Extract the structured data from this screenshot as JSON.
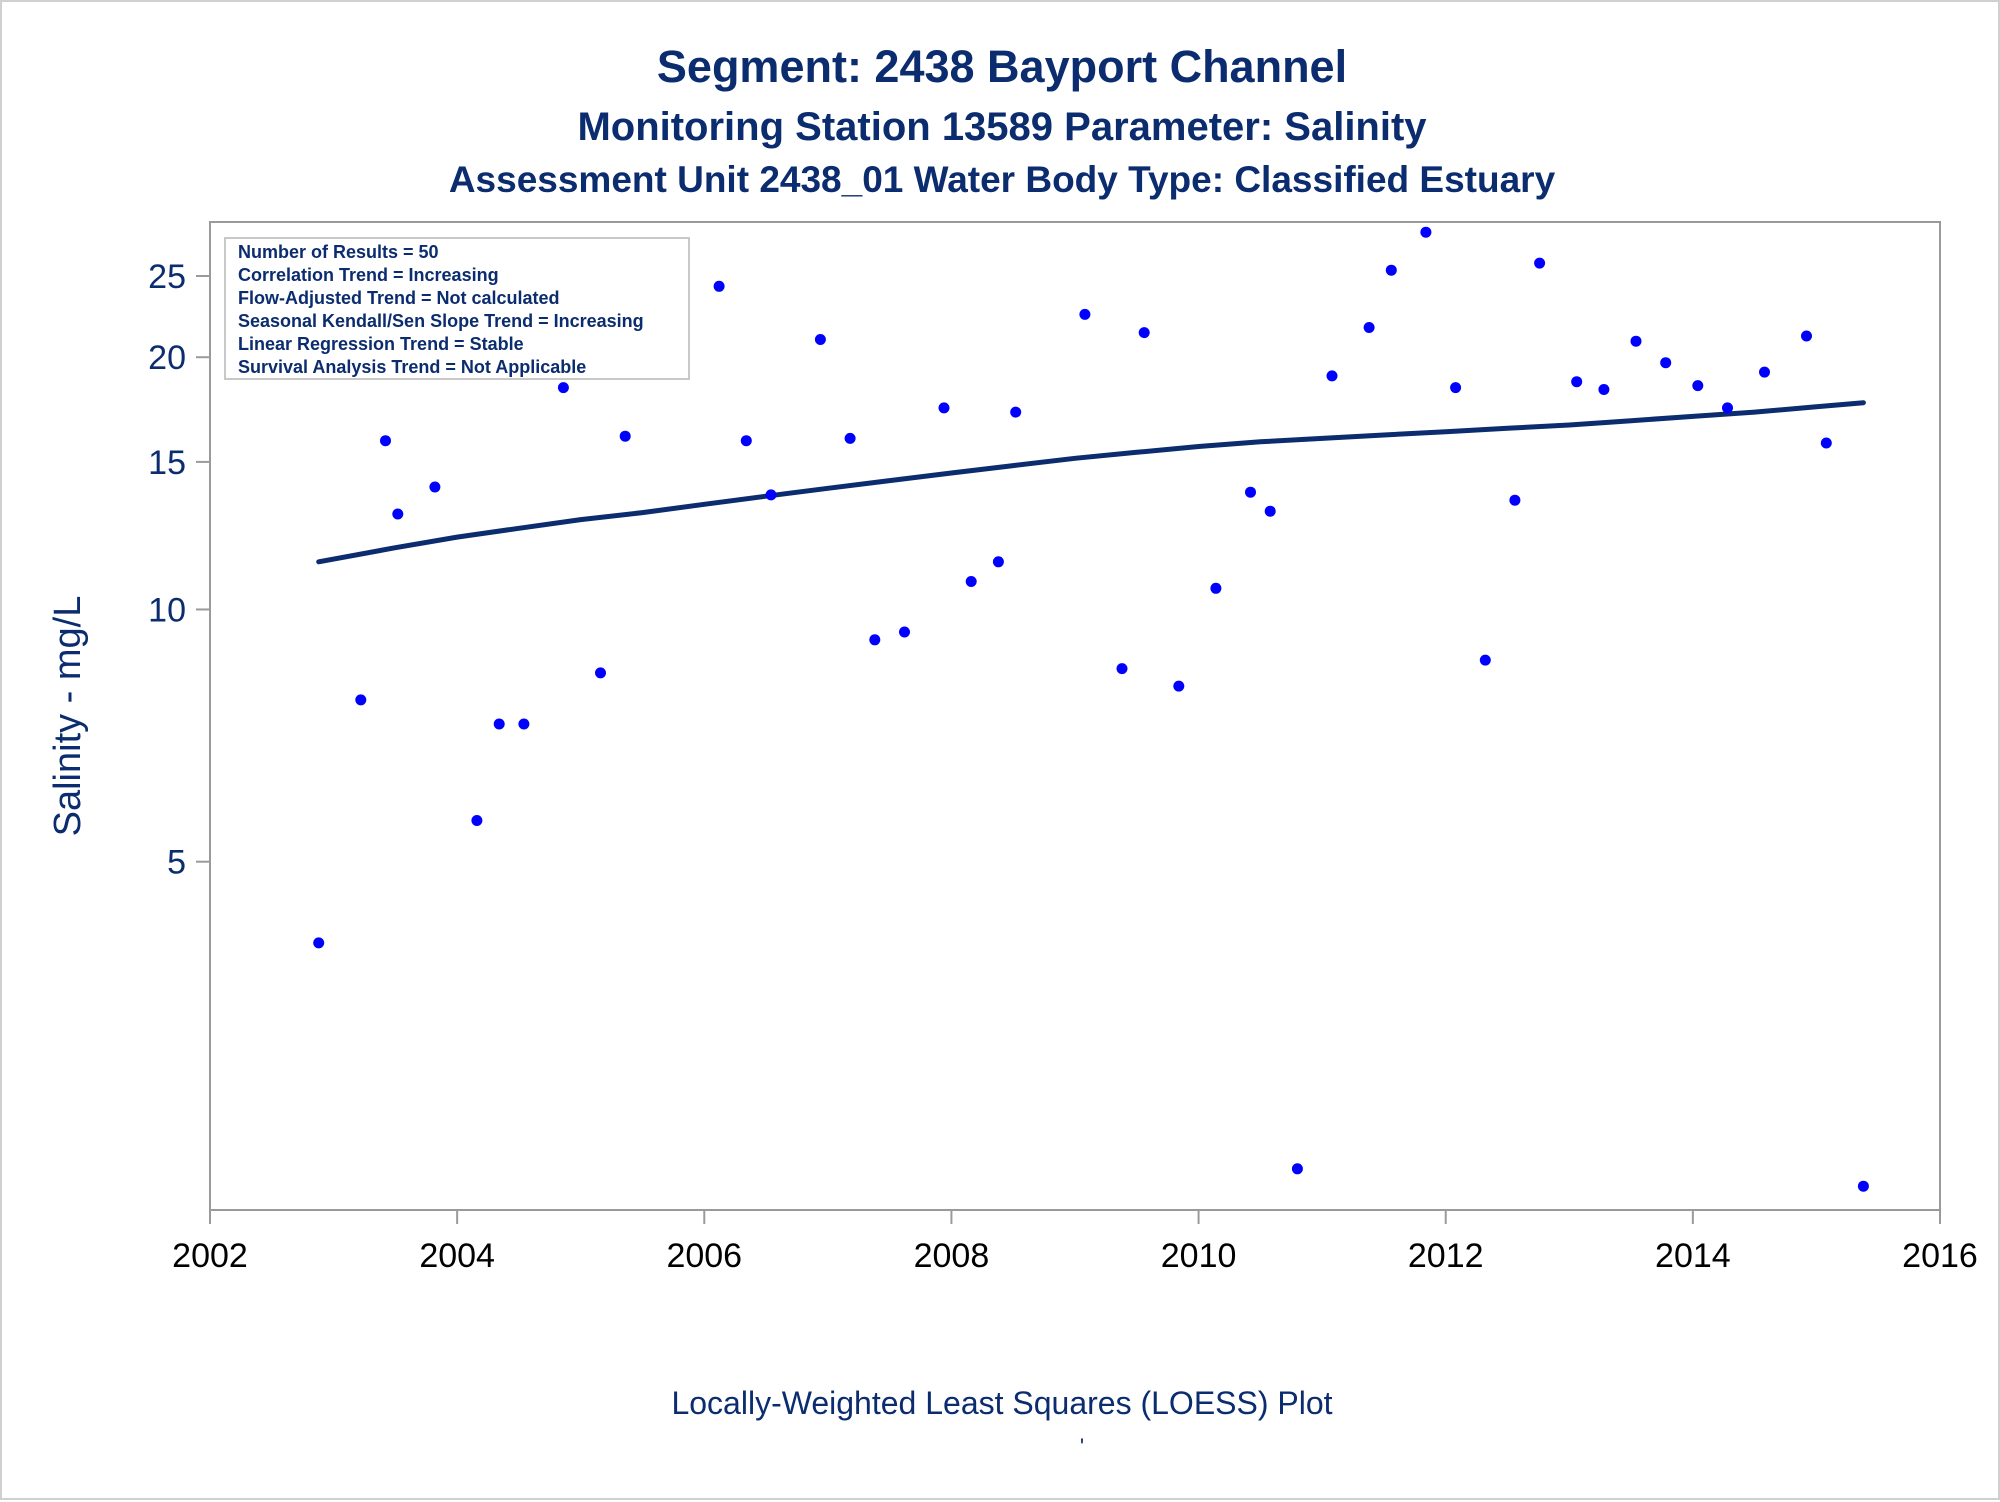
{
  "chart_data": {
    "type": "scatter",
    "title": "Segment: 2438  Bayport Channel",
    "subtitle": "Monitoring Station 13589 Parameter: Salinity",
    "subtitle2": "Assessment Unit 2438_01   Water Body Type: Classified Estuary",
    "xlabel": "",
    "ylabel": "Salinity - mg/L",
    "footnote": "Locally-Weighted Least Squares (LOESS) Plot",
    "footnote_mark": "'",
    "y_scale": "log",
    "xlim": [
      2002.0,
      2016.0
    ],
    "ylim": [
      1.92,
      29.0
    ],
    "x_ticks": [
      2002,
      2004,
      2006,
      2008,
      2010,
      2012,
      2014,
      2016
    ],
    "x_tick_labels": [
      "2002",
      "2004",
      "2006",
      "2008",
      "2010",
      "2012",
      "2014",
      "2016"
    ],
    "y_ticks": [
      5,
      10,
      15,
      20,
      25
    ],
    "y_tick_labels": [
      "5",
      "10",
      "15",
      "20",
      "25"
    ],
    "grid": false,
    "legend": null,
    "stats_box": {
      "placement": "top-left",
      "lines": [
        "Number of Results = 50",
        "Correlation Trend = Increasing",
        "Flow-Adjusted Trend = Not calculated",
        "Seasonal Kendall/Sen Slope Trend = Increasing",
        "Linear Regression Trend = Stable",
        "Survival Analysis Trend = Not Applicable"
      ]
    },
    "colors": {
      "points": "#0000ff",
      "trend_line": "#0b2c6e",
      "text": "#0b2c6e",
      "axis": "#9a9a9a"
    },
    "series": [
      {
        "type": "scatter",
        "points": [
          {
            "x": 2002.88,
            "y": 4.0
          },
          {
            "x": 2003.22,
            "y": 7.8
          },
          {
            "x": 2003.42,
            "y": 15.9
          },
          {
            "x": 2003.52,
            "y": 13.0
          },
          {
            "x": 2003.82,
            "y": 14.0
          },
          {
            "x": 2004.16,
            "y": 5.6
          },
          {
            "x": 2004.34,
            "y": 7.3
          },
          {
            "x": 2004.54,
            "y": 7.3
          },
          {
            "x": 2004.86,
            "y": 18.4
          },
          {
            "x": 2005.16,
            "y": 8.4
          },
          {
            "x": 2005.36,
            "y": 16.1
          },
          {
            "x": 2005.58,
            "y": 19.2
          },
          {
            "x": 2005.84,
            "y": 21.6
          },
          {
            "x": 2006.12,
            "y": 24.3
          },
          {
            "x": 2006.34,
            "y": 15.9
          },
          {
            "x": 2006.54,
            "y": 13.7
          },
          {
            "x": 2006.94,
            "y": 21.0
          },
          {
            "x": 2007.18,
            "y": 16.0
          },
          {
            "x": 2007.38,
            "y": 9.2
          },
          {
            "x": 2007.62,
            "y": 9.4
          },
          {
            "x": 2007.94,
            "y": 17.4
          },
          {
            "x": 2008.16,
            "y": 10.8
          },
          {
            "x": 2008.38,
            "y": 11.4
          },
          {
            "x": 2008.52,
            "y": 17.2
          },
          {
            "x": 2009.08,
            "y": 22.5
          },
          {
            "x": 2009.38,
            "y": 8.5
          },
          {
            "x": 2009.56,
            "y": 21.4
          },
          {
            "x": 2009.84,
            "y": 8.1
          },
          {
            "x": 2010.14,
            "y": 10.6
          },
          {
            "x": 2010.42,
            "y": 13.8
          },
          {
            "x": 2010.58,
            "y": 13.1
          },
          {
            "x": 2010.8,
            "y": 2.15
          },
          {
            "x": 2011.08,
            "y": 19.0
          },
          {
            "x": 2011.38,
            "y": 21.7
          },
          {
            "x": 2011.56,
            "y": 25.4
          },
          {
            "x": 2011.84,
            "y": 28.2
          },
          {
            "x": 2012.08,
            "y": 18.4
          },
          {
            "x": 2012.32,
            "y": 8.7
          },
          {
            "x": 2012.56,
            "y": 13.5
          },
          {
            "x": 2012.76,
            "y": 25.9
          },
          {
            "x": 2013.06,
            "y": 18.7
          },
          {
            "x": 2013.28,
            "y": 18.3
          },
          {
            "x": 2013.54,
            "y": 20.9
          },
          {
            "x": 2013.78,
            "y": 19.7
          },
          {
            "x": 2014.04,
            "y": 18.5
          },
          {
            "x": 2014.28,
            "y": 17.4
          },
          {
            "x": 2014.58,
            "y": 19.2
          },
          {
            "x": 2014.92,
            "y": 21.2
          },
          {
            "x": 2015.08,
            "y": 15.8
          },
          {
            "x": 2015.38,
            "y": 2.05
          }
        ]
      },
      {
        "type": "line",
        "points": [
          {
            "x": 2002.88,
            "y": 11.4
          },
          {
            "x": 2003.5,
            "y": 11.85
          },
          {
            "x": 2004.0,
            "y": 12.2
          },
          {
            "x": 2004.5,
            "y": 12.5
          },
          {
            "x": 2005.0,
            "y": 12.8
          },
          {
            "x": 2005.5,
            "y": 13.05
          },
          {
            "x": 2006.0,
            "y": 13.35
          },
          {
            "x": 2006.5,
            "y": 13.65
          },
          {
            "x": 2007.0,
            "y": 13.95
          },
          {
            "x": 2007.5,
            "y": 14.25
          },
          {
            "x": 2008.0,
            "y": 14.55
          },
          {
            "x": 2008.5,
            "y": 14.85
          },
          {
            "x": 2009.0,
            "y": 15.15
          },
          {
            "x": 2009.5,
            "y": 15.4
          },
          {
            "x": 2010.0,
            "y": 15.65
          },
          {
            "x": 2010.5,
            "y": 15.85
          },
          {
            "x": 2011.0,
            "y": 16.0
          },
          {
            "x": 2011.5,
            "y": 16.15
          },
          {
            "x": 2012.0,
            "y": 16.3
          },
          {
            "x": 2012.5,
            "y": 16.45
          },
          {
            "x": 2013.0,
            "y": 16.6
          },
          {
            "x": 2013.5,
            "y": 16.8
          },
          {
            "x": 2014.0,
            "y": 17.0
          },
          {
            "x": 2014.5,
            "y": 17.2
          },
          {
            "x": 2015.0,
            "y": 17.45
          },
          {
            "x": 2015.38,
            "y": 17.65
          }
        ]
      }
    ]
  }
}
